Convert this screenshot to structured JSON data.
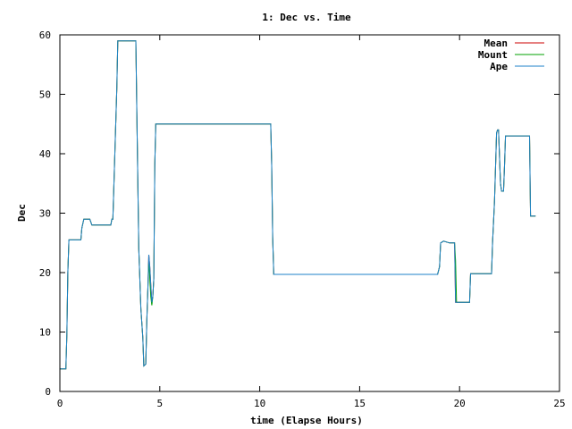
{
  "chart_data": {
    "type": "line",
    "title": "1: Dec vs. Time",
    "xlabel": "time (Elapse Hours)",
    "ylabel": "Dec",
    "xlim": [
      0,
      25
    ],
    "ylim": [
      0,
      60
    ],
    "xticks": [
      "0",
      "5",
      "10",
      "15",
      "20",
      "25"
    ],
    "yticks": [
      "0",
      "10",
      "20",
      "30",
      "40",
      "50",
      "60"
    ],
    "grid": false,
    "legend_position": "top-right",
    "series": [
      {
        "name": "Mean",
        "color": "#cc0000",
        "points": [
          [
            0,
            3.8
          ],
          [
            0.3,
            3.8
          ],
          [
            0.35,
            9.5
          ],
          [
            0.4,
            20
          ],
          [
            0.45,
            25.5
          ],
          [
            1.05,
            25.5
          ],
          [
            1.1,
            27.5
          ],
          [
            1.2,
            29
          ],
          [
            1.5,
            29
          ],
          [
            1.6,
            28
          ],
          [
            2.55,
            28
          ],
          [
            2.6,
            29
          ],
          [
            2.65,
            29
          ],
          [
            2.75,
            40
          ],
          [
            2.85,
            51
          ],
          [
            2.9,
            59
          ],
          [
            3.8,
            59
          ],
          [
            3.85,
            47
          ],
          [
            3.95,
            24
          ],
          [
            4.05,
            14
          ],
          [
            4.15,
            9
          ],
          [
            4.2,
            4.3
          ],
          [
            4.3,
            4.6
          ],
          [
            4.35,
            12
          ],
          [
            4.4,
            17
          ],
          [
            4.45,
            23
          ],
          [
            4.5,
            21
          ],
          [
            4.55,
            18
          ],
          [
            4.6,
            15
          ],
          [
            4.65,
            16
          ],
          [
            4.7,
            19
          ],
          [
            4.75,
            38
          ],
          [
            4.8,
            45
          ],
          [
            10.55,
            45
          ],
          [
            10.6,
            38
          ],
          [
            10.65,
            26
          ],
          [
            10.7,
            19.7
          ],
          [
            16.2,
            19.7
          ],
          [
            18.9,
            19.7
          ],
          [
            19,
            21
          ],
          [
            19.05,
            25
          ],
          [
            19.2,
            25.3
          ],
          [
            19.5,
            25
          ],
          [
            19.75,
            25
          ],
          [
            19.8,
            15
          ],
          [
            20.5,
            15
          ],
          [
            20.55,
            19.8
          ],
          [
            21.6,
            19.8
          ],
          [
            21.65,
            25
          ],
          [
            21.75,
            32
          ],
          [
            21.85,
            43.5
          ],
          [
            21.9,
            44
          ],
          [
            21.95,
            44
          ],
          [
            22.05,
            35
          ],
          [
            22.1,
            33.7
          ],
          [
            22.2,
            33.7
          ],
          [
            22.25,
            38
          ],
          [
            22.3,
            43
          ],
          [
            23.5,
            43
          ],
          [
            23.55,
            29.5
          ],
          [
            23.8,
            29.5
          ]
        ]
      },
      {
        "name": "Mount",
        "color": "#00a000",
        "points": [
          [
            0,
            3.8
          ],
          [
            0.3,
            3.8
          ],
          [
            0.35,
            9.5
          ],
          [
            0.4,
            20
          ],
          [
            0.45,
            25.5
          ],
          [
            1.05,
            25.5
          ],
          [
            1.1,
            27.5
          ],
          [
            1.2,
            29
          ],
          [
            1.5,
            29
          ],
          [
            1.6,
            28
          ],
          [
            2.55,
            28
          ],
          [
            2.6,
            29
          ],
          [
            2.65,
            29
          ],
          [
            2.75,
            40
          ],
          [
            2.85,
            51
          ],
          [
            2.9,
            59
          ],
          [
            3.8,
            59
          ],
          [
            3.85,
            47
          ],
          [
            3.95,
            24
          ],
          [
            4.05,
            14
          ],
          [
            4.15,
            9
          ],
          [
            4.2,
            4.3
          ],
          [
            4.3,
            4.6
          ],
          [
            4.35,
            12
          ],
          [
            4.4,
            17
          ],
          [
            4.45,
            22
          ],
          [
            4.5,
            19
          ],
          [
            4.55,
            16
          ],
          [
            4.6,
            14.5
          ],
          [
            4.65,
            16
          ],
          [
            4.7,
            19
          ],
          [
            4.75,
            38
          ],
          [
            4.8,
            45
          ],
          [
            10.55,
            45
          ],
          [
            10.6,
            38
          ],
          [
            10.65,
            26
          ],
          [
            10.7,
            19.7
          ],
          [
            16.2,
            19.7
          ],
          [
            18.9,
            19.7
          ],
          [
            19,
            21
          ],
          [
            19.05,
            25
          ],
          [
            19.2,
            25.3
          ],
          [
            19.5,
            25
          ],
          [
            19.75,
            25
          ],
          [
            19.8,
            22
          ],
          [
            19.85,
            15
          ],
          [
            20.5,
            15
          ],
          [
            20.55,
            19.8
          ],
          [
            21.6,
            19.8
          ],
          [
            21.65,
            25
          ],
          [
            21.75,
            32
          ],
          [
            21.85,
            43.5
          ],
          [
            21.9,
            44
          ],
          [
            21.95,
            44
          ],
          [
            22.05,
            35
          ],
          [
            22.1,
            33.7
          ],
          [
            22.2,
            33.7
          ],
          [
            22.25,
            38
          ],
          [
            22.3,
            43
          ],
          [
            23.5,
            43
          ],
          [
            23.55,
            29.5
          ],
          [
            23.8,
            29.5
          ]
        ]
      },
      {
        "name": "Ape",
        "color": "#1e82c8",
        "points": [
          [
            0,
            3.8
          ],
          [
            0.3,
            3.8
          ],
          [
            0.35,
            9.5
          ],
          [
            0.4,
            20
          ],
          [
            0.45,
            25.5
          ],
          [
            1.05,
            25.5
          ],
          [
            1.1,
            27.5
          ],
          [
            1.2,
            29
          ],
          [
            1.5,
            29
          ],
          [
            1.6,
            28
          ],
          [
            2.55,
            28
          ],
          [
            2.6,
            29
          ],
          [
            2.65,
            29
          ],
          [
            2.75,
            40
          ],
          [
            2.85,
            51
          ],
          [
            2.9,
            59
          ],
          [
            3.8,
            59
          ],
          [
            3.85,
            47
          ],
          [
            3.95,
            24
          ],
          [
            4.05,
            14
          ],
          [
            4.15,
            9
          ],
          [
            4.2,
            4.3
          ],
          [
            4.3,
            4.6
          ],
          [
            4.35,
            12
          ],
          [
            4.4,
            17
          ],
          [
            4.45,
            23
          ],
          [
            4.5,
            21
          ],
          [
            4.55,
            18
          ],
          [
            4.6,
            15
          ],
          [
            4.65,
            16
          ],
          [
            4.7,
            19
          ],
          [
            4.75,
            38
          ],
          [
            4.8,
            45
          ],
          [
            10.55,
            45
          ],
          [
            10.6,
            38
          ],
          [
            10.65,
            26
          ],
          [
            10.7,
            19.7
          ],
          [
            16.2,
            19.7
          ],
          [
            18.9,
            19.7
          ],
          [
            19,
            21
          ],
          [
            19.05,
            25
          ],
          [
            19.2,
            25.3
          ],
          [
            19.5,
            25
          ],
          [
            19.75,
            25
          ],
          [
            19.8,
            15
          ],
          [
            20.5,
            15
          ],
          [
            20.55,
            19.8
          ],
          [
            21.6,
            19.8
          ],
          [
            21.65,
            25
          ],
          [
            21.75,
            32
          ],
          [
            21.85,
            43.5
          ],
          [
            21.9,
            44
          ],
          [
            21.95,
            44
          ],
          [
            22.05,
            35
          ],
          [
            22.1,
            33.7
          ],
          [
            22.2,
            33.7
          ],
          [
            22.25,
            38
          ],
          [
            22.3,
            43
          ],
          [
            23.5,
            43
          ],
          [
            23.55,
            29.5
          ],
          [
            23.8,
            29.5
          ]
        ]
      }
    ]
  }
}
